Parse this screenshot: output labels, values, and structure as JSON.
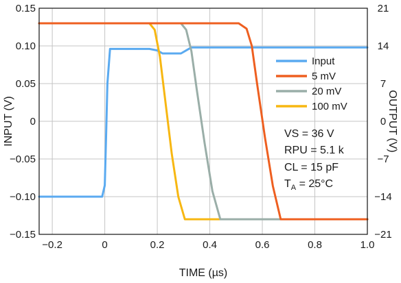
{
  "chart_data": {
    "type": "line",
    "title": "",
    "xlabel": "TIME (µs)",
    "ylabel_left": "INPUT (V)",
    "ylabel_right": "OUTPUT (V)",
    "xlim": [
      -0.25,
      1.0
    ],
    "ylim_left": [
      -0.15,
      0.15
    ],
    "ylim_right": [
      -21,
      21
    ],
    "x_ticks": [
      -0.2,
      0,
      0.2,
      0.4,
      0.6,
      0.8,
      1.0
    ],
    "x_tick_labels": [
      "−0.2",
      "0",
      "0.2",
      "0.4",
      "0.6",
      "0.8",
      "1.0"
    ],
    "y_left_ticks": [
      0.15,
      0.1,
      0.05,
      0,
      -0.05,
      -0.1,
      -0.15
    ],
    "y_left_tick_labels": [
      "0.15",
      "0.10",
      "0.05",
      "0",
      "−0.05",
      "−0.10",
      "−0.15"
    ],
    "y_right_ticks": [
      21,
      14,
      7,
      0,
      -7,
      -14,
      -21
    ],
    "y_right_tick_labels": [
      "21",
      "14",
      "7",
      "0",
      "−7",
      "−14",
      "−21"
    ],
    "grid": true,
    "legend": {
      "placement": "top-right",
      "entries": [
        "Input",
        "5 mV",
        "20 mV",
        "100 mV"
      ]
    },
    "annotations": [
      "VS = 36 V",
      "RPU = 5.1 k",
      "CL = 15 pF",
      "T",
      "A",
      " = 25°C"
    ],
    "series": [
      {
        "name": "Input",
        "axis": "left",
        "color": "#5aaaf0",
        "x": [
          -0.25,
          -0.01,
          0.0,
          0.005,
          0.01,
          0.02,
          0.08,
          0.17,
          0.2,
          0.22,
          0.29,
          0.31,
          0.33,
          1.0
        ],
        "y": [
          -0.1,
          -0.1,
          -0.085,
          -0.02,
          0.05,
          0.096,
          0.096,
          0.096,
          0.094,
          0.09,
          0.09,
          0.094,
          0.098,
          0.098
        ]
      },
      {
        "name": "5 mV",
        "axis": "right",
        "color": "#ee5f20",
        "x": [
          -0.25,
          0.51,
          0.54,
          0.56,
          0.58,
          0.61,
          0.64,
          0.67,
          0.69,
          1.0
        ],
        "y": [
          18.2,
          18.2,
          17.2,
          14.0,
          7.0,
          -3.0,
          -12.0,
          -18.2,
          -18.2,
          -18.2
        ]
      },
      {
        "name": "20 mV",
        "axis": "right",
        "color": "#9aaea8",
        "x": [
          -0.25,
          0.29,
          0.31,
          0.33,
          0.35,
          0.38,
          0.41,
          0.44,
          0.46,
          1.0
        ],
        "y": [
          18.2,
          18.2,
          17.0,
          13.0,
          6.0,
          -4.0,
          -13.0,
          -18.2,
          -18.2,
          -18.2
        ]
      },
      {
        "name": "100 mV",
        "axis": "right",
        "color": "#f7b712",
        "x": [
          -0.25,
          0.17,
          0.19,
          0.21,
          0.23,
          0.255,
          0.28,
          0.305,
          0.33,
          1.0
        ],
        "y": [
          18.2,
          18.2,
          17.0,
          12.0,
          4.0,
          -6.0,
          -14.0,
          -18.2,
          -18.2,
          -18.2
        ]
      }
    ]
  }
}
